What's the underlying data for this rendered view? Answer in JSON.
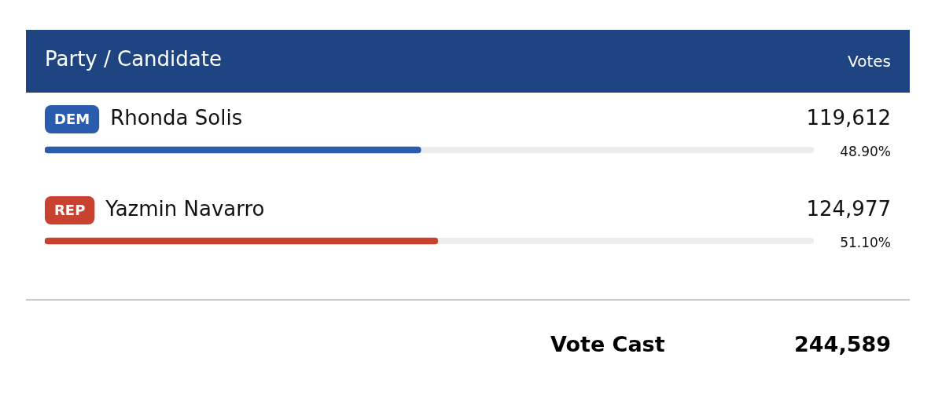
{
  "chart_data": {
    "type": "bar",
    "orientation": "horizontal",
    "ylabel": "Party / Candidate",
    "xlabel": "Votes",
    "categories": [
      "Rhonda Solis",
      "Yazmin Navarro"
    ],
    "values": [
      48.9,
      51.1
    ],
    "colors": [
      "#2a5cad",
      "#c9412f"
    ],
    "value_labels": [
      "48.90%",
      "51.10%"
    ],
    "xlim": [
      0,
      100
    ],
    "tick_labels": false,
    "annotations": [
      {
        "text": "DEM",
        "y": "Rhonda Solis"
      },
      "119,612",
      {
        "text": "REP",
        "y": "Yazmin Navarro"
      },
      "124,977",
      "Vote Cast",
      "244,589"
    ]
  }
}
